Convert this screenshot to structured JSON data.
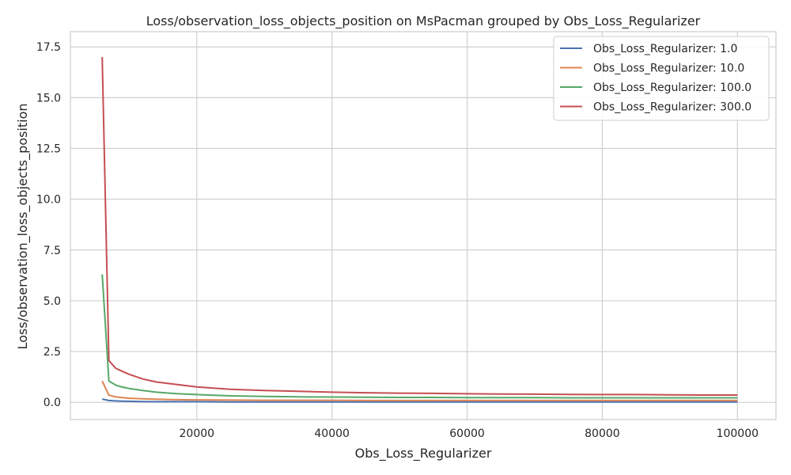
{
  "chart_data": {
    "type": "line",
    "title": "Loss/observation_loss_objects_position on MsPacman grouped by Obs_Loss_Regularizer",
    "xlabel": "Obs_Loss_Regularizer",
    "ylabel": "Loss/observation_loss_objects_position",
    "xlim": [
      1300,
      105700
    ],
    "ylim": [
      -0.85,
      18.25
    ],
    "x_ticks": [
      20000,
      40000,
      60000,
      80000,
      100000
    ],
    "x_tick_labels": [
      "20000",
      "40000",
      "60000",
      "80000",
      "100000"
    ],
    "y_ticks": [
      0.0,
      2.5,
      5.0,
      7.5,
      10.0,
      12.5,
      15.0,
      17.5
    ],
    "y_tick_labels": [
      "0.0",
      "2.5",
      "5.0",
      "7.5",
      "10.0",
      "12.5",
      "15.0",
      "17.5"
    ],
    "grid": true,
    "legend_position": "top-right",
    "x": [
      6000,
      7000,
      8000,
      9000,
      10000,
      12000,
      14000,
      17000,
      20000,
      25000,
      30000,
      35000,
      40000,
      45000,
      50000,
      55000,
      60000,
      65000,
      70000,
      75000,
      80000,
      85000,
      90000,
      95000,
      100000
    ],
    "series": [
      {
        "name": "Obs_Loss_Regularizer: 1.0",
        "color": "#4c72b0",
        "values": [
          0.16,
          0.09,
          0.07,
          0.06,
          0.05,
          0.04,
          0.03,
          0.03,
          0.03,
          0.02,
          0.02,
          0.02,
          0.02,
          0.02,
          0.02,
          0.02,
          0.02,
          0.02,
          0.02,
          0.02,
          0.02,
          0.02,
          0.02,
          0.02,
          0.02
        ]
      },
      {
        "name": "Obs_Loss_Regularizer: 10.0",
        "color": "#dd8452",
        "values": [
          1.05,
          0.35,
          0.27,
          0.23,
          0.2,
          0.17,
          0.15,
          0.13,
          0.12,
          0.11,
          0.1,
          0.1,
          0.1,
          0.09,
          0.09,
          0.09,
          0.09,
          0.09,
          0.09,
          0.09,
          0.09,
          0.09,
          0.09,
          0.09,
          0.09
        ]
      },
      {
        "name": "Obs_Loss_Regularizer: 100.0",
        "color": "#55a868",
        "values": [
          6.3,
          1.05,
          0.85,
          0.75,
          0.68,
          0.58,
          0.5,
          0.43,
          0.38,
          0.32,
          0.29,
          0.27,
          0.26,
          0.25,
          0.24,
          0.24,
          0.23,
          0.23,
          0.23,
          0.22,
          0.22,
          0.22,
          0.22,
          0.22,
          0.22
        ]
      },
      {
        "name": "Obs_Loss_Regularizer: 300.0",
        "color": "#c44e52",
        "values": [
          17.0,
          2.05,
          1.68,
          1.52,
          1.38,
          1.15,
          1.0,
          0.88,
          0.76,
          0.64,
          0.58,
          0.54,
          0.5,
          0.47,
          0.45,
          0.44,
          0.42,
          0.41,
          0.4,
          0.39,
          0.38,
          0.38,
          0.37,
          0.36,
          0.36
        ]
      }
    ]
  }
}
